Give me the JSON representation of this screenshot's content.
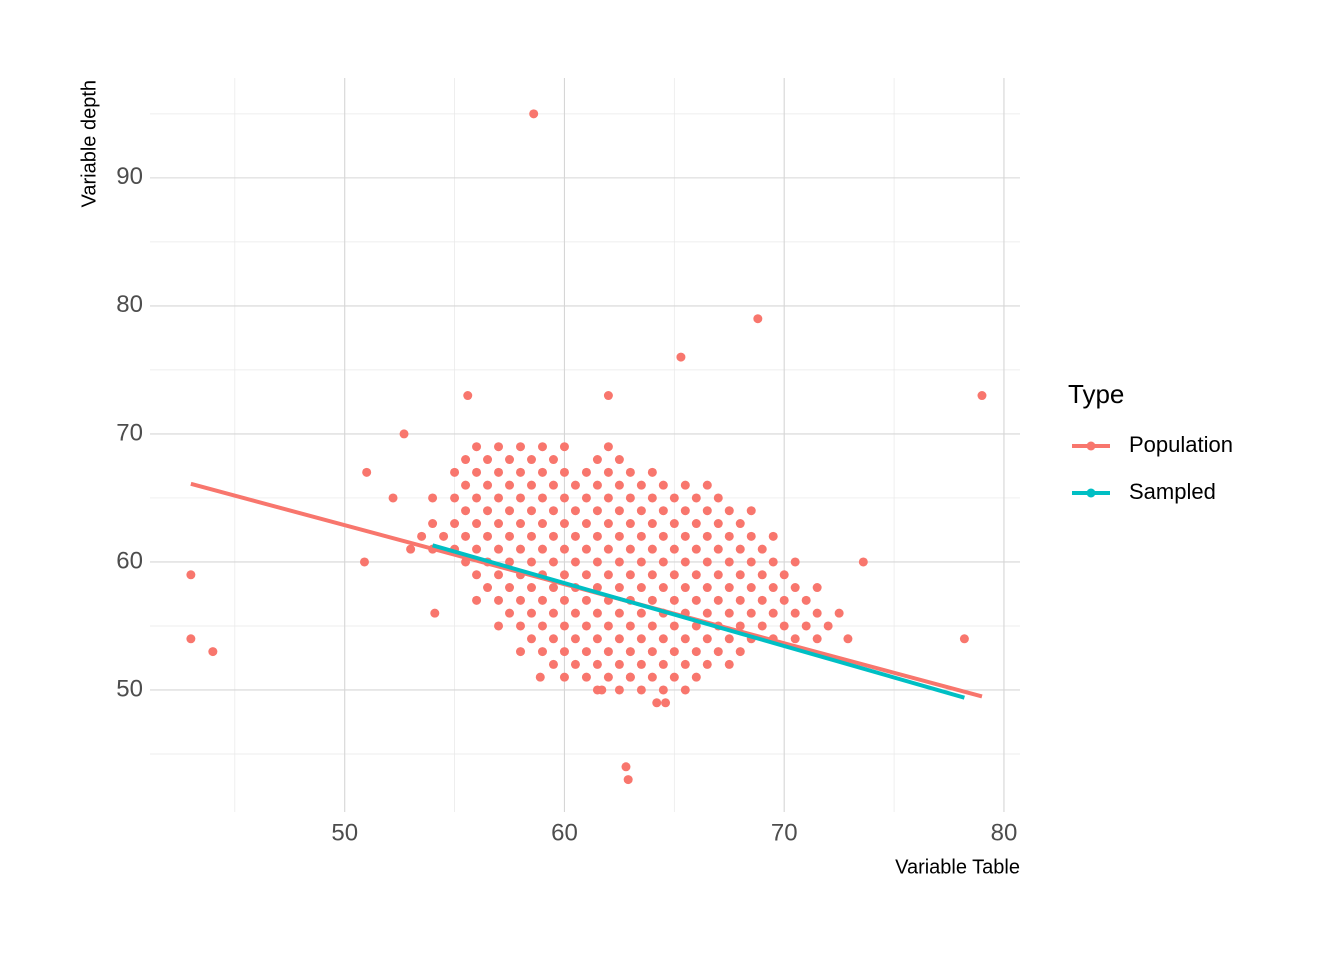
{
  "chart_data": {
    "type": "scatter",
    "x_label": "Variable Table",
    "y_label": "Variable depth",
    "legend_title": "Type",
    "legend_position": "right",
    "grid": true,
    "xlim": [
      41.14,
      80.73
    ],
    "ylim": [
      40.47,
      97.8
    ],
    "xticks": [
      50,
      60,
      70,
      80
    ],
    "yticks": [
      50,
      60,
      70,
      80,
      90
    ],
    "minor_xticks": [
      45,
      55,
      65,
      75
    ],
    "minor_yticks": [
      45,
      55,
      65,
      75,
      85,
      95
    ],
    "series": [
      {
        "name": "Population",
        "color": "#F8766D",
        "x": [
          56,
          57,
          58,
          59,
          60,
          62,
          55.5,
          56.5,
          57.5,
          58.5,
          59.5,
          61.5,
          62.5,
          55,
          56,
          57,
          58,
          59,
          60,
          61,
          62,
          63,
          64,
          55.5,
          56.5,
          57.5,
          58.5,
          59.5,
          60.5,
          61.5,
          62.5,
          63.5,
          64.5,
          65.5,
          66.5,
          54,
          55,
          56,
          57,
          58,
          59,
          60,
          61,
          62,
          63,
          64,
          65,
          66,
          67,
          55.5,
          56.5,
          57.5,
          58.5,
          59.5,
          60.5,
          61.5,
          62.5,
          63.5,
          64.5,
          65.5,
          66.5,
          67.5,
          68.5,
          54,
          55,
          56,
          57,
          58,
          59,
          60,
          61,
          62,
          63,
          64,
          65,
          66,
          67,
          68,
          53.5,
          54.5,
          55.5,
          56.5,
          57.5,
          58.5,
          59.5,
          60.5,
          61.5,
          62.5,
          63.5,
          64.5,
          65.5,
          66.5,
          67.5,
          68.5,
          69.5,
          53,
          54,
          55,
          56,
          57,
          58,
          59,
          60,
          61,
          62,
          63,
          64,
          65,
          66,
          67,
          68,
          69,
          55.5,
          56.5,
          57.5,
          58.5,
          59.5,
          60.5,
          61.5,
          62.5,
          63.5,
          64.5,
          65.5,
          66.5,
          67.5,
          68.5,
          69.5,
          70.5,
          56,
          57,
          58,
          59,
          60,
          61,
          62,
          63,
          64,
          65,
          66,
          67,
          68,
          69,
          70,
          56.5,
          57.5,
          58.5,
          59.5,
          60.5,
          61.5,
          62.5,
          63.5,
          64.5,
          65.5,
          66.5,
          67.5,
          68.5,
          69.5,
          70.5,
          71.5,
          56,
          57,
          58,
          59,
          60,
          61,
          62,
          63,
          64,
          65,
          66,
          67,
          68,
          69,
          70,
          71,
          57.5,
          58.5,
          59.5,
          60.5,
          61.5,
          62.5,
          63.5,
          64.5,
          65.5,
          66.5,
          67.5,
          68.5,
          69.5,
          70.5,
          71.5,
          72.5,
          57,
          58,
          59,
          60,
          61,
          62,
          63,
          64,
          65,
          66,
          67,
          68,
          69,
          70,
          71,
          72,
          58.5,
          59.5,
          60.5,
          61.5,
          62.5,
          63.5,
          64.5,
          65.5,
          66.5,
          67.5,
          68.5,
          69.5,
          70.5,
          71.5,
          58,
          59,
          60,
          61,
          62,
          63,
          64,
          65,
          66,
          67,
          68,
          59.5,
          60.5,
          61.5,
          62.5,
          63.5,
          64.5,
          65.5,
          66.5,
          67.5,
          60,
          61,
          62,
          63,
          64,
          65,
          66,
          61.5,
          62.5,
          63.5,
          64.5,
          65.5,
          43,
          43,
          44,
          58.6,
          68.8,
          65.3,
          79,
          78.2,
          73.6,
          72.9,
          62.8,
          62.9,
          50.9,
          51,
          52.7,
          52.2,
          54.1,
          55.6,
          62,
          64.2,
          64.6,
          58.9,
          61.7,
          63
        ],
        "values": [
          69,
          69,
          69,
          69,
          69,
          69,
          68,
          68,
          68,
          68,
          68,
          68,
          68,
          67,
          67,
          67,
          67,
          67,
          67,
          67,
          67,
          67,
          67,
          66,
          66,
          66,
          66,
          66,
          66,
          66,
          66,
          66,
          66,
          66,
          66,
          65,
          65,
          65,
          65,
          65,
          65,
          65,
          65,
          65,
          65,
          65,
          65,
          65,
          65,
          64,
          64,
          64,
          64,
          64,
          64,
          64,
          64,
          64,
          64,
          64,
          64,
          64,
          64,
          63,
          63,
          63,
          63,
          63,
          63,
          63,
          63,
          63,
          63,
          63,
          63,
          63,
          63,
          63,
          62,
          62,
          62,
          62,
          62,
          62,
          62,
          62,
          62,
          62,
          62,
          62,
          62,
          62,
          62,
          62,
          62,
          61,
          61,
          61,
          61,
          61,
          61,
          61,
          61,
          61,
          61,
          61,
          61,
          61,
          61,
          61,
          61,
          61,
          60,
          60,
          60,
          60,
          60,
          60,
          60,
          60,
          60,
          60,
          60,
          60,
          60,
          60,
          60,
          60,
          59,
          59,
          59,
          59,
          59,
          59,
          59,
          59,
          59,
          59,
          59,
          59,
          59,
          59,
          59,
          58,
          58,
          58,
          58,
          58,
          58,
          58,
          58,
          58,
          58,
          58,
          58,
          58,
          58,
          58,
          58,
          57,
          57,
          57,
          57,
          57,
          57,
          57,
          57,
          57,
          57,
          57,
          57,
          57,
          57,
          57,
          57,
          56,
          56,
          56,
          56,
          56,
          56,
          56,
          56,
          56,
          56,
          56,
          56,
          56,
          56,
          56,
          56,
          55,
          55,
          55,
          55,
          55,
          55,
          55,
          55,
          55,
          55,
          55,
          55,
          55,
          55,
          55,
          55,
          54,
          54,
          54,
          54,
          54,
          54,
          54,
          54,
          54,
          54,
          54,
          54,
          54,
          54,
          53,
          53,
          53,
          53,
          53,
          53,
          53,
          53,
          53,
          53,
          53,
          52,
          52,
          52,
          52,
          52,
          52,
          52,
          52,
          52,
          51,
          51,
          51,
          51,
          51,
          51,
          51,
          50,
          50,
          50,
          50,
          50,
          59,
          54,
          53,
          95,
          79,
          76,
          73,
          54,
          60,
          54,
          44,
          43,
          60,
          67,
          70,
          65,
          56,
          73,
          73,
          49,
          49,
          51,
          50,
          51
        ],
        "line": {
          "x": [
            43,
            79
          ],
          "values": [
            66.1,
            49.5
          ]
        }
      },
      {
        "name": "Sampled",
        "color": "#00BFC4",
        "line": {
          "x": [
            54,
            78.2
          ],
          "values": [
            61.3,
            49.4
          ]
        }
      }
    ]
  }
}
